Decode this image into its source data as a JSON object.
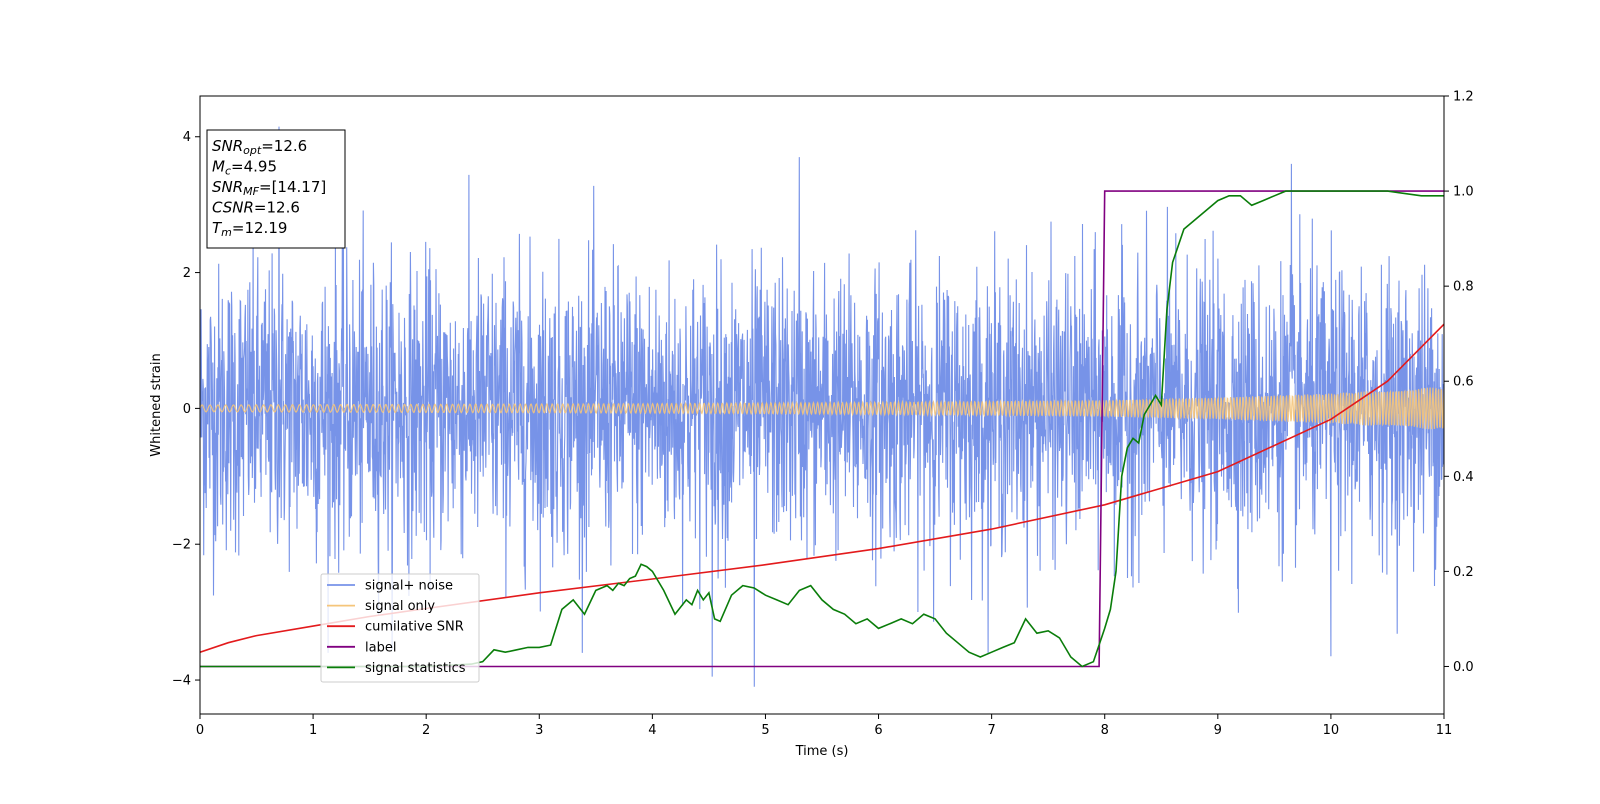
{
  "chart_data": {
    "type": "line",
    "xlabel": "Time (s)",
    "ylabel": "Whitened strain",
    "xlim": [
      0,
      11
    ],
    "ylim_left": [
      -4.5,
      4.6
    ],
    "ylim_right": [
      -0.1,
      1.2
    ],
    "x_ticks": [
      0,
      1,
      2,
      3,
      4,
      5,
      6,
      7,
      8,
      9,
      10,
      11
    ],
    "x_tick_labels": [
      "0",
      "1",
      "2",
      "3",
      "4",
      "5",
      "6",
      "7",
      "8",
      "9",
      "10",
      "11"
    ],
    "y_left_ticks": [
      -4,
      -2,
      0,
      2,
      4
    ],
    "y_left_tick_labels": [
      "−4",
      "−2",
      "0",
      "2",
      "4"
    ],
    "y_right_ticks": [
      0.0,
      0.2,
      0.4,
      0.6,
      0.8,
      1.0,
      1.2
    ],
    "y_right_tick_labels": [
      "0.0",
      "0.2",
      "0.4",
      "0.6",
      "0.8",
      "1.0",
      "1.2"
    ],
    "grid": false,
    "legend_placement": "lower-left",
    "info_box": [
      {
        "base": "SNR",
        "sub": "opt",
        "rest": "=12.6"
      },
      {
        "base": "M",
        "sub": "c",
        "rest": "=4.95"
      },
      {
        "base": "SNR",
        "sub": "MF",
        "rest": "=[14.17]"
      },
      {
        "base": "CSNR",
        "sub": "",
        "rest": "=12.6"
      },
      {
        "base": "T",
        "sub": "m",
        "rest": "=12.19"
      }
    ],
    "series": [
      {
        "name": "signal+ noise",
        "axis": "left",
        "color": "#7793e8",
        "style": "noise",
        "envelope": {
          "x": [
            0,
            3,
            5,
            8,
            11
          ],
          "sigma": [
            1.05,
            1.05,
            1.0,
            1.0,
            1.0
          ]
        },
        "peaks": [
          [
            0.7,
            4.15
          ],
          [
            5.3,
            3.7
          ],
          [
            9.65,
            3.6
          ],
          [
            4.9,
            -4.1
          ],
          [
            4.53,
            -3.95
          ],
          [
            10.0,
            -3.65
          ]
        ]
      },
      {
        "name": "signal only",
        "axis": "left",
        "color": "#f5c57a",
        "style": "chirp",
        "amplitude": {
          "x": [
            0,
            2,
            4,
            6,
            8,
            9,
            10,
            11
          ],
          "y": [
            0.05,
            0.06,
            0.07,
            0.09,
            0.12,
            0.16,
            0.22,
            0.32
          ]
        }
      },
      {
        "name": "cumilative SNR",
        "axis": "right",
        "color": "#e31a1c",
        "x": [
          0,
          0.25,
          0.5,
          1,
          1.5,
          2,
          3,
          4,
          5,
          6,
          7,
          8,
          9,
          10,
          10.5,
          11
        ],
        "y": [
          0.03,
          0.05,
          0.065,
          0.085,
          0.105,
          0.122,
          0.155,
          0.184,
          0.214,
          0.248,
          0.289,
          0.34,
          0.41,
          0.52,
          0.6,
          0.72
        ]
      },
      {
        "name": "label",
        "axis": "right",
        "color": "#800080",
        "x": [
          0,
          7.95,
          8.0,
          11
        ],
        "y": [
          0,
          0,
          1,
          1
        ]
      },
      {
        "name": "signal statistics",
        "axis": "right",
        "color": "#0a7d0a",
        "x": [
          0,
          0.3,
          1.0,
          2.0,
          2.4,
          2.5,
          2.6,
          2.7,
          2.8,
          2.9,
          3.0,
          3.1,
          3.2,
          3.3,
          3.4,
          3.5,
          3.6,
          3.65,
          3.7,
          3.75,
          3.8,
          3.85,
          3.9,
          3.95,
          4.0,
          4.1,
          4.2,
          4.3,
          4.35,
          4.4,
          4.45,
          4.5,
          4.55,
          4.6,
          4.7,
          4.8,
          4.9,
          5.0,
          5.1,
          5.2,
          5.3,
          5.4,
          5.5,
          5.6,
          5.7,
          5.8,
          5.9,
          6.0,
          6.1,
          6.2,
          6.3,
          6.4,
          6.5,
          6.6,
          6.7,
          6.8,
          6.9,
          7.0,
          7.1,
          7.2,
          7.3,
          7.4,
          7.5,
          7.6,
          7.7,
          7.8,
          7.9,
          8.0,
          8.05,
          8.1,
          8.15,
          8.2,
          8.25,
          8.3,
          8.35,
          8.4,
          8.45,
          8.5,
          8.55,
          8.6,
          8.7,
          8.8,
          8.9,
          9.0,
          9.1,
          9.2,
          9.3,
          9.4,
          9.5,
          9.6,
          9.8,
          10.0,
          10.5,
          10.8,
          11.0
        ],
        "y": [
          0.0,
          0.0,
          0.0,
          0.0,
          0.005,
          0.01,
          0.035,
          0.03,
          0.035,
          0.04,
          0.04,
          0.045,
          0.12,
          0.14,
          0.11,
          0.16,
          0.17,
          0.16,
          0.175,
          0.17,
          0.185,
          0.19,
          0.215,
          0.21,
          0.2,
          0.16,
          0.11,
          0.14,
          0.13,
          0.16,
          0.14,
          0.155,
          0.1,
          0.095,
          0.15,
          0.17,
          0.165,
          0.15,
          0.14,
          0.13,
          0.16,
          0.17,
          0.14,
          0.12,
          0.11,
          0.09,
          0.1,
          0.08,
          0.09,
          0.1,
          0.09,
          0.11,
          0.1,
          0.07,
          0.05,
          0.03,
          0.02,
          0.03,
          0.04,
          0.05,
          0.1,
          0.07,
          0.075,
          0.06,
          0.02,
          0.0,
          0.01,
          0.08,
          0.12,
          0.2,
          0.4,
          0.46,
          0.48,
          0.47,
          0.53,
          0.55,
          0.57,
          0.55,
          0.75,
          0.85,
          0.92,
          0.94,
          0.96,
          0.98,
          0.99,
          0.99,
          0.97,
          0.98,
          0.99,
          1.0,
          1.0,
          1.0,
          1.0,
          0.99,
          0.99
        ]
      }
    ]
  }
}
